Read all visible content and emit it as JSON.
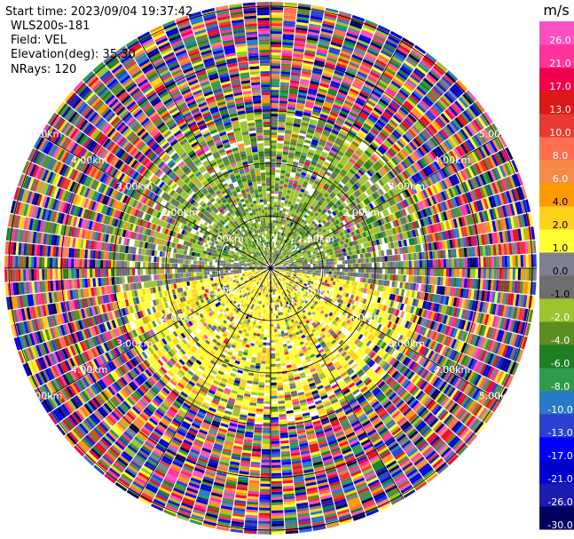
{
  "info": {
    "start_time": "Start time: 2023/09/04 19:37:42",
    "instrument": "WLS200s-181",
    "field": "Field: VEL",
    "elevation": "Elevation(deg): 35.30",
    "nrays": "NRays: 120"
  },
  "colorbar": {
    "unit": "m/s",
    "colors": [
      "#000060",
      "#1b1bb0",
      "#0000cc",
      "#0000f5",
      "#2a40d0",
      "#2779c9",
      "#2f9b4d",
      "#1f7f22",
      "#5d8c1f",
      "#9bc42d",
      "#6e6e6e",
      "#7c8090",
      "#ffff33",
      "#ffd21a",
      "#ff9900",
      "#f78a48",
      "#ff6e4e",
      "#e83a33",
      "#dd1818",
      "#f0004a",
      "#ff3399",
      "#ff4fc0"
    ],
    "labels": [
      "-30.0",
      "-26.0",
      "-21.0",
      "-17.0",
      "-13.0",
      "-10.0",
      "-8.0",
      "-6.0",
      "-4.0",
      "-2.0",
      "-1.0",
      "0.0",
      "1.0",
      "2.0",
      "4.0",
      "6.0",
      "8.0",
      "10.0",
      "13.0",
      "17.0",
      "21.0",
      "26.0"
    ]
  },
  "rings": {
    "labels": [
      "1.00km",
      "2.00km",
      "3.00km",
      "4.00km",
      "5.00km"
    ]
  },
  "chart_data": {
    "type": "heatmap",
    "projection": "polar PPI",
    "field": "VEL",
    "units": "m/s",
    "nrays": 120,
    "range_rings_km": [
      1,
      2,
      3,
      4,
      5
    ],
    "color_range": [
      -30,
      26
    ],
    "pattern": {
      "north_inner": "green (-2 to -4 m/s)",
      "south_inner": "yellow (2 to 4 m/s)",
      "outer": "noisy, all values"
    }
  }
}
